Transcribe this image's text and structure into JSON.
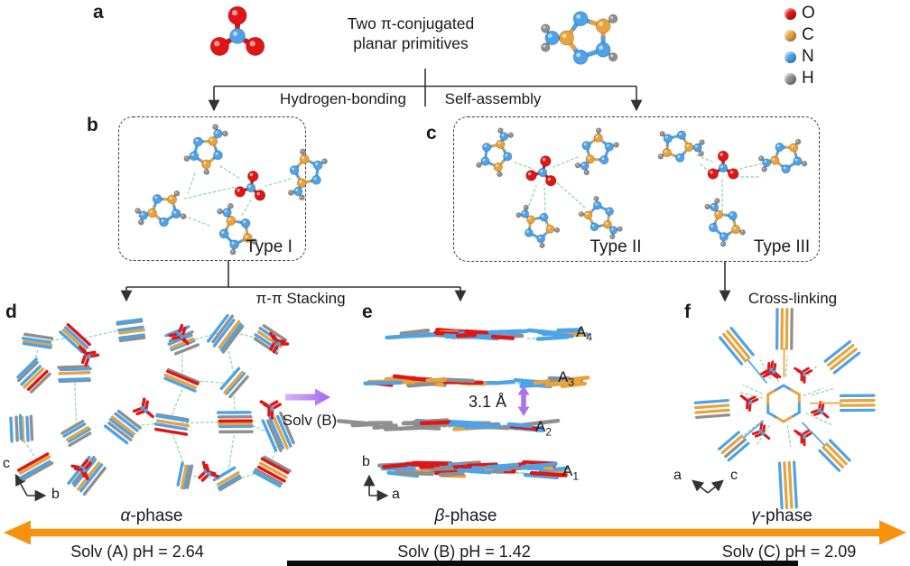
{
  "panel_labels": {
    "a": "a",
    "b": "b",
    "c": "c",
    "d": "d",
    "e": "e",
    "f": "f"
  },
  "header": {
    "title_line1": "Two π-conjugated",
    "title_line2": "planar primitives"
  },
  "legend": {
    "items": [
      {
        "label": "O",
        "color": "#e01515"
      },
      {
        "label": "C",
        "color": "#e8a33d"
      },
      {
        "label": "N",
        "color": "#4da3e8"
      },
      {
        "label": "H",
        "color": "#8f8f8f"
      }
    ]
  },
  "flow": {
    "hydrogen_bonding": "Hydrogen-bonding",
    "self_assembly": "Self-assembly",
    "pi_stacking": "π-π Stacking",
    "cross_linking": "Cross-linking"
  },
  "types": {
    "type_i": "Type I",
    "type_ii": "Type II",
    "type_iii": "Type III"
  },
  "alpha": {
    "phase_symbol": "α",
    "phase_suffix": "-phase",
    "axis_up": "c",
    "axis_right": "b"
  },
  "beta": {
    "phase_symbol": "β",
    "phase_suffix": "-phase",
    "axis_up": "b",
    "axis_right": "a",
    "spacing": "3.1 Å",
    "solvent": "Solv (B)",
    "layers": [
      {
        "base": "A",
        "sub": "4"
      },
      {
        "base": "A",
        "sub": "3"
      },
      {
        "base": "A",
        "sub": "2"
      },
      {
        "base": "A",
        "sub": "1"
      }
    ]
  },
  "gamma": {
    "phase_symbol": "γ",
    "phase_suffix": "-phase",
    "axis_left": "a",
    "axis_right": "c"
  },
  "footer": {
    "solv_a": "Solv (A) pH = 2.64",
    "solv_b": "Solv (B) pH = 1.42",
    "solv_c": "Solv (C) pH = 2.09"
  },
  "colors": {
    "oxygen": "#e01515",
    "carbon": "#e8a33d",
    "nitrogen": "#4da3e8",
    "hydrogen": "#8f8f8f",
    "hbond": "#8fd9a8",
    "connector": "#333333",
    "orange_arrow": "#f6920e",
    "purple_arrow": "#ab72ec"
  }
}
